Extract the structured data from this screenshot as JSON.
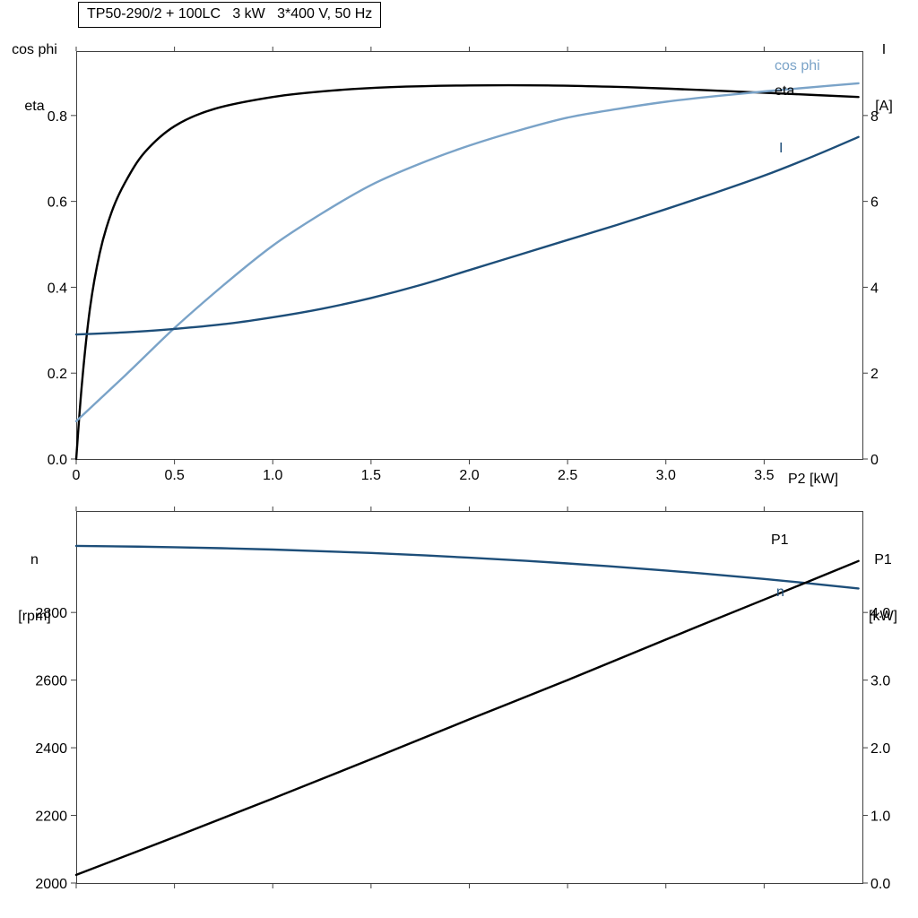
{
  "page": {
    "background": "#ffffff",
    "frame_color": "#404040"
  },
  "chart_data": [
    {
      "type": "line",
      "title": "TP50-290/2 + 100LC   3 kW   3*400 V, 50 Hz",
      "grid": false,
      "legend_position": "curve-end-labels-right",
      "x_axis": {
        "label": "P2 [kW]",
        "range": [
          0,
          4.0
        ],
        "ticks": [
          0,
          0.5,
          1.0,
          1.5,
          2.0,
          2.5,
          3.0,
          3.5
        ],
        "tick_labels": [
          "0",
          "0.5",
          "1.0",
          "1.5",
          "2.0",
          "2.5",
          "3.0",
          "3.5"
        ]
      },
      "y_left": {
        "label_lines": [
          "cos phi",
          "eta"
        ],
        "range": [
          0,
          0.95
        ],
        "ticks": [
          0,
          0.2,
          0.4,
          0.6,
          0.8
        ],
        "tick_labels": [
          "0.0",
          "0.2",
          "0.4",
          "0.6",
          "0.8"
        ]
      },
      "y_right": {
        "label_lines": [
          "I",
          "[A]"
        ],
        "range": [
          0,
          9.5
        ],
        "ticks": [
          0,
          2,
          4,
          6,
          8
        ],
        "tick_labels": [
          "0",
          "2",
          "4",
          "6",
          "8"
        ]
      },
      "series": [
        {
          "name": "eta",
          "axis": "left",
          "unit": "",
          "color": "#000000",
          "x": [
            0,
            0.03,
            0.07,
            0.12,
            0.18,
            0.25,
            0.35,
            0.5,
            0.7,
            1.0,
            1.3,
            1.6,
            2.0,
            2.4,
            2.8,
            3.2,
            3.6,
            3.98
          ],
          "y": [
            0,
            0.18,
            0.35,
            0.48,
            0.575,
            0.645,
            0.715,
            0.775,
            0.815,
            0.843,
            0.858,
            0.866,
            0.87,
            0.87,
            0.866,
            0.859,
            0.851,
            0.843
          ]
        },
        {
          "name": "cos phi",
          "axis": "left",
          "unit": "",
          "color": "#7aa3c8",
          "x": [
            0,
            0.25,
            0.5,
            0.75,
            1.0,
            1.25,
            1.5,
            1.75,
            2.0,
            2.25,
            2.5,
            2.75,
            3.0,
            3.25,
            3.5,
            3.75,
            3.98
          ],
          "y": [
            0.088,
            0.195,
            0.305,
            0.405,
            0.497,
            0.572,
            0.638,
            0.688,
            0.73,
            0.765,
            0.795,
            0.815,
            0.832,
            0.845,
            0.856,
            0.866,
            0.875
          ]
        },
        {
          "name": "I",
          "axis": "right",
          "unit": "A",
          "color": "#1d4e79",
          "x": [
            0,
            0.25,
            0.5,
            0.75,
            1.0,
            1.25,
            1.5,
            1.75,
            2.0,
            2.25,
            2.5,
            2.75,
            3.0,
            3.25,
            3.5,
            3.75,
            3.98
          ],
          "y": [
            2.9,
            2.95,
            3.03,
            3.14,
            3.3,
            3.5,
            3.75,
            4.05,
            4.4,
            4.75,
            5.1,
            5.45,
            5.82,
            6.2,
            6.6,
            7.05,
            7.5
          ]
        }
      ]
    },
    {
      "type": "line",
      "title": "",
      "grid": false,
      "legend_position": "curve-end-labels-right",
      "x_axis": {
        "label": "",
        "range": [
          0,
          4.0
        ],
        "ticks": [
          0,
          0.5,
          1.0,
          1.5,
          2.0,
          2.5,
          3.0,
          3.5
        ],
        "tick_labels": []
      },
      "y_left": {
        "label_lines": [
          "n",
          "[rpm]"
        ],
        "range": [
          2000,
          3100
        ],
        "ticks": [
          2000,
          2200,
          2400,
          2600,
          2800
        ],
        "tick_labels": [
          "2000",
          "2200",
          "2400",
          "2600",
          "2800"
        ]
      },
      "y_right": {
        "label_lines": [
          "P1",
          "[kW]"
        ],
        "range": [
          0,
          5.5
        ],
        "ticks": [
          0,
          1,
          2,
          3,
          4
        ],
        "tick_labels": [
          "0.0",
          "1.0",
          "2.0",
          "3.0",
          "4.0"
        ]
      },
      "series": [
        {
          "name": "n",
          "axis": "left",
          "unit": "rpm",
          "color": "#1d4e79",
          "x": [
            0,
            0.5,
            1.0,
            1.5,
            2.0,
            2.5,
            3.0,
            3.5,
            3.98
          ],
          "y": [
            2997,
            2993,
            2986,
            2976,
            2962,
            2945,
            2924,
            2899,
            2871
          ]
        },
        {
          "name": "P1",
          "axis": "right",
          "unit": "kW",
          "color": "#000000",
          "x": [
            0,
            0.5,
            1.0,
            1.5,
            2.0,
            2.5,
            3.0,
            3.5,
            3.98
          ],
          "y": [
            0.12,
            0.68,
            1.25,
            1.83,
            2.42,
            3.0,
            3.6,
            4.19,
            4.76
          ]
        }
      ]
    }
  ]
}
